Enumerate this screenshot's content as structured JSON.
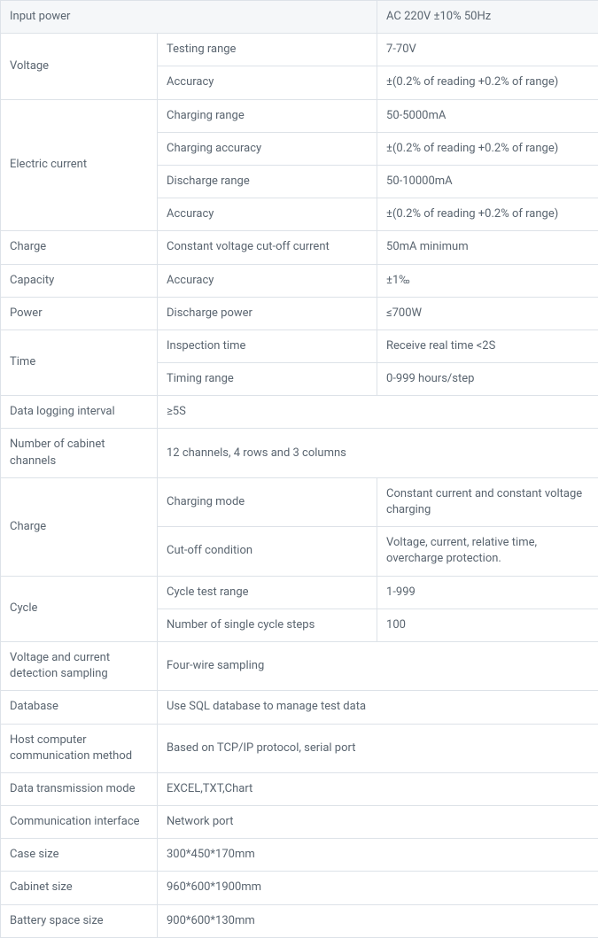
{
  "table": {
    "colors": {
      "border": "#dde2e8",
      "text": "#5a6570",
      "header_bg": "#f5f7f9",
      "bg": "#ffffff"
    },
    "font_size": 13,
    "rows": [
      {
        "header": true,
        "cells": [
          {
            "text": "Input power",
            "colspan": 2
          },
          {
            "text": "AC 220V ±10% 50Hz"
          }
        ]
      },
      {
        "cells": [
          {
            "text": "Voltage",
            "rowspan": 2
          },
          {
            "text": "Testing range"
          },
          {
            "text": "7-70V"
          }
        ]
      },
      {
        "cells": [
          {
            "text": "Accuracy"
          },
          {
            "text": "±(0.2% of reading +0.2% of range)"
          }
        ]
      },
      {
        "cells": [
          {
            "text": "Electric current",
            "rowspan": 4
          },
          {
            "text": "Charging range"
          },
          {
            "text": "50-5000mA"
          }
        ]
      },
      {
        "cells": [
          {
            "text": "Charging accuracy"
          },
          {
            "text": "±(0.2% of reading +0.2% of range)"
          }
        ]
      },
      {
        "cells": [
          {
            "text": "Discharge range"
          },
          {
            "text": "50-10000mA"
          }
        ]
      },
      {
        "cells": [
          {
            "text": "Accuracy"
          },
          {
            "text": "±(0.2% of reading +0.2% of range)"
          }
        ]
      },
      {
        "cells": [
          {
            "text": "Charge"
          },
          {
            "text": "Constant voltage cut-off current"
          },
          {
            "text": "50mA minimum"
          }
        ]
      },
      {
        "cells": [
          {
            "text": "Capacity"
          },
          {
            "text": "Accuracy"
          },
          {
            "text": "±1‰"
          }
        ]
      },
      {
        "cells": [
          {
            "text": "Power"
          },
          {
            "text": "Discharge power"
          },
          {
            "text": "≤700W"
          }
        ]
      },
      {
        "cells": [
          {
            "text": "Time",
            "rowspan": 2
          },
          {
            "text": "Inspection time"
          },
          {
            "text": "Receive real time <2S"
          }
        ]
      },
      {
        "cells": [
          {
            "text": "Timing range"
          },
          {
            "text": "0-999 hours/step"
          }
        ]
      },
      {
        "cells": [
          {
            "text": "Data logging interval"
          },
          {
            "text": "≥5S",
            "colspan": 2
          }
        ]
      },
      {
        "cells": [
          {
            "text": "Number of cabinet channels"
          },
          {
            "text": "12 channels, 4 rows and 3 columns",
            "colspan": 2
          }
        ]
      },
      {
        "cells": [
          {
            "text": "Charge",
            "rowspan": 2
          },
          {
            "text": "Charging mode"
          },
          {
            "text": "Constant current and constant voltage charging"
          }
        ]
      },
      {
        "cells": [
          {
            "text": "Cut-off condition"
          },
          {
            "text": "Voltage, current, relative time, overcharge protection."
          }
        ]
      },
      {
        "cells": [
          {
            "text": "Cycle",
            "rowspan": 2
          },
          {
            "text": "Cycle test range"
          },
          {
            "text": "1-999"
          }
        ]
      },
      {
        "cells": [
          {
            "text": "Number of single cycle steps"
          },
          {
            "text": "100"
          }
        ]
      },
      {
        "cells": [
          {
            "text": "Voltage and current detection sampling"
          },
          {
            "text": "Four-wire sampling",
            "colspan": 2
          }
        ]
      },
      {
        "cells": [
          {
            "text": "Database"
          },
          {
            "text": "Use SQL database to manage test data",
            "colspan": 2
          }
        ]
      },
      {
        "cells": [
          {
            "text": "Host computer communication method"
          },
          {
            "text": "Based on TCP/IP protocol, serial port",
            "colspan": 2
          }
        ]
      },
      {
        "cells": [
          {
            "text": "Data transmission mode"
          },
          {
            "text": "EXCEL,TXT,Chart",
            "colspan": 2
          }
        ]
      },
      {
        "cells": [
          {
            "text": "Communication interface"
          },
          {
            "text": "Network port",
            "colspan": 2
          }
        ]
      },
      {
        "cells": [
          {
            "text": "Case size"
          },
          {
            "text": "300*450*170mm",
            "colspan": 2
          }
        ]
      },
      {
        "cells": [
          {
            "text": "Cabinet size"
          },
          {
            "text": "960*600*1900mm",
            "colspan": 2
          }
        ]
      },
      {
        "cells": [
          {
            "text": "Battery space size"
          },
          {
            "text": "900*600*130mm",
            "colspan": 2
          }
        ]
      }
    ]
  }
}
